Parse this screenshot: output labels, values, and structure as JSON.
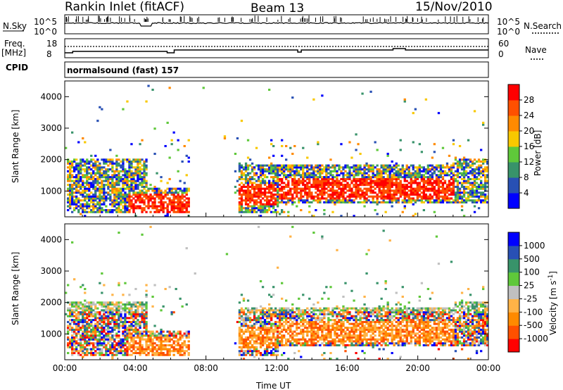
{
  "header": {
    "station": "Rankin Inlet (fitACF)",
    "beam": "Beam 13",
    "date": "15/Nov/2010"
  },
  "panels": {
    "nsky_label": "N.Sky",
    "nsky_ticks": [
      "10^5",
      "10^0"
    ],
    "nsearch_label": "N.Search",
    "freq_label_1": "Freq.",
    "freq_label_2": "[MHz]",
    "freq_ticks": [
      "18",
      "8"
    ],
    "nave_label": "Nave",
    "nave_ticks": [
      "60",
      "0"
    ],
    "cpid_label": "CPID",
    "cpid_value": "normalsound (fast) 157"
  },
  "colors": {
    "power_scale": [
      "#0000ff",
      "#2850b4",
      "#38936a",
      "#5fc83a",
      "#f8c800",
      "#ff8a00",
      "#ff5000",
      "#ff0000"
    ],
    "velocity_scale": [
      "#ff0000",
      "#ff5000",
      "#ff8a00",
      "#ffb347",
      "#c0c0c0",
      "#5fc83a",
      "#38936a",
      "#2850b4",
      "#0000ff"
    ]
  },
  "chart_data": [
    {
      "type": "heatmap",
      "name": "power",
      "ylabel": "Slant Range [km]",
      "ylim": [
        180,
        4500
      ],
      "yticks": [
        "1000",
        "2000",
        "3000",
        "4000"
      ],
      "xlim_hours": [
        0,
        24
      ],
      "colorbar": {
        "label": "Power [dB]",
        "range": [
          0,
          32
        ],
        "ticks": [
          "4",
          "8",
          "12",
          "16",
          "20",
          "24",
          "28"
        ]
      },
      "echo_regions": [
        {
          "t": [
            0.1,
            4.6
          ],
          "r": [
            300,
            2000
          ],
          "level": "high"
        },
        {
          "t": [
            4.6,
            7.0
          ],
          "r": [
            300,
            1100
          ],
          "level": "high"
        },
        {
          "t": [
            9.8,
            12.0
          ],
          "r": [
            300,
            1800
          ],
          "level": "high"
        },
        {
          "t": [
            12.0,
            22.0
          ],
          "r": [
            600,
            1800
          ],
          "level": "high"
        },
        {
          "t": [
            22.0,
            24.0
          ],
          "r": [
            600,
            2000
          ],
          "level": "high"
        }
      ]
    },
    {
      "type": "heatmap",
      "name": "velocity",
      "ylabel": "Slant Range [km]",
      "ylim": [
        180,
        4500
      ],
      "yticks": [
        "1000",
        "2000",
        "3000",
        "4000"
      ],
      "xlim_hours": [
        0,
        24
      ],
      "xticks": [
        "00:00",
        "04:00",
        "08:00",
        "12:00",
        "16:00",
        "20:00",
        "00:00"
      ],
      "xlabel": "Time UT",
      "colorbar": {
        "label": "Velocity [m s^-1]",
        "ticks": [
          "1000",
          "500",
          "100",
          "25",
          "-25",
          "-100",
          "-500",
          "-1000"
        ]
      }
    }
  ]
}
